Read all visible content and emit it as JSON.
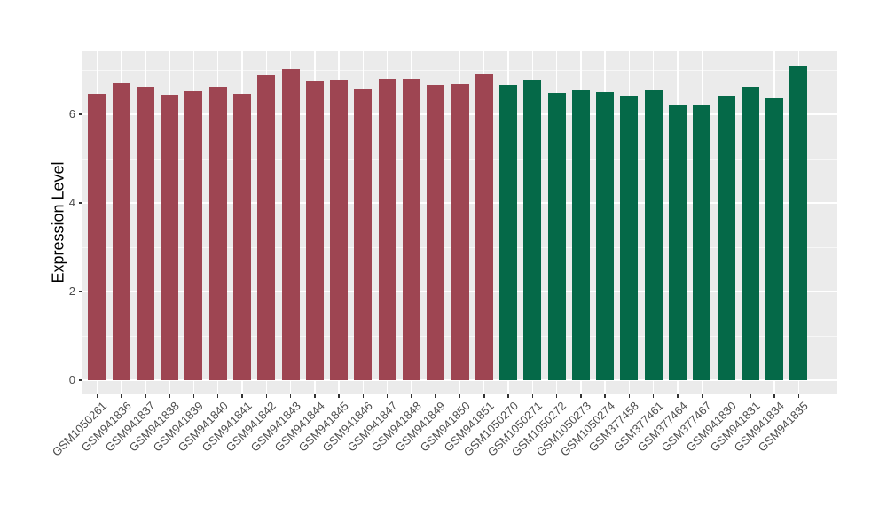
{
  "chart_data": {
    "type": "bar",
    "title": "",
    "xlabel": "",
    "ylabel": "Expression Level",
    "ylim": [
      -0.36,
      7.44
    ],
    "yticks": [
      0,
      2,
      4,
      6
    ],
    "yticks_minor": [
      1,
      3,
      5,
      7
    ],
    "grid": "white major/minor horizontal lines and white vertical lines at category centers on gray panel",
    "legend": "none",
    "categories": [
      "GSM1050261",
      "GSM941836",
      "GSM941837",
      "GSM941838",
      "GSM941839",
      "GSM941840",
      "GSM941841",
      "GSM941842",
      "GSM941843",
      "GSM941844",
      "GSM941845",
      "GSM941846",
      "GSM941847",
      "GSM941848",
      "GSM941849",
      "GSM941850",
      "GSM941851",
      "GSM1050270",
      "GSM1050271",
      "GSM1050272",
      "GSM1050273",
      "GSM1050274",
      "GSM377458",
      "GSM377461",
      "GSM377464",
      "GSM377467",
      "GSM941830",
      "GSM941831",
      "GSM941834",
      "GSM941835"
    ],
    "values": [
      6.46,
      6.7,
      6.63,
      6.45,
      6.52,
      6.62,
      6.47,
      6.88,
      7.02,
      6.77,
      6.78,
      6.58,
      6.8,
      6.81,
      6.66,
      6.68,
      6.9,
      6.67,
      6.79,
      6.48,
      6.54,
      6.5,
      6.42,
      6.57,
      6.23,
      6.23,
      6.42,
      6.63,
      6.36,
      7.1
    ],
    "groups": [
      "group1",
      "group1",
      "group1",
      "group1",
      "group1",
      "group1",
      "group1",
      "group1",
      "group1",
      "group1",
      "group1",
      "group1",
      "group1",
      "group1",
      "group1",
      "group1",
      "group1",
      "group2",
      "group2",
      "group2",
      "group2",
      "group2",
      "group2",
      "group2",
      "group2",
      "group2",
      "group2",
      "group2",
      "group2",
      "group2"
    ]
  },
  "style": {
    "group_colors": {
      "group1": "#9E4552",
      "group2": "#056948"
    },
    "panel_bg": "#EBEBEB",
    "grid_color": "#FFFFFF",
    "tick_text_color": "#4D4D4D",
    "axis_title_color": "#000000",
    "background": "#FFFFFF"
  }
}
